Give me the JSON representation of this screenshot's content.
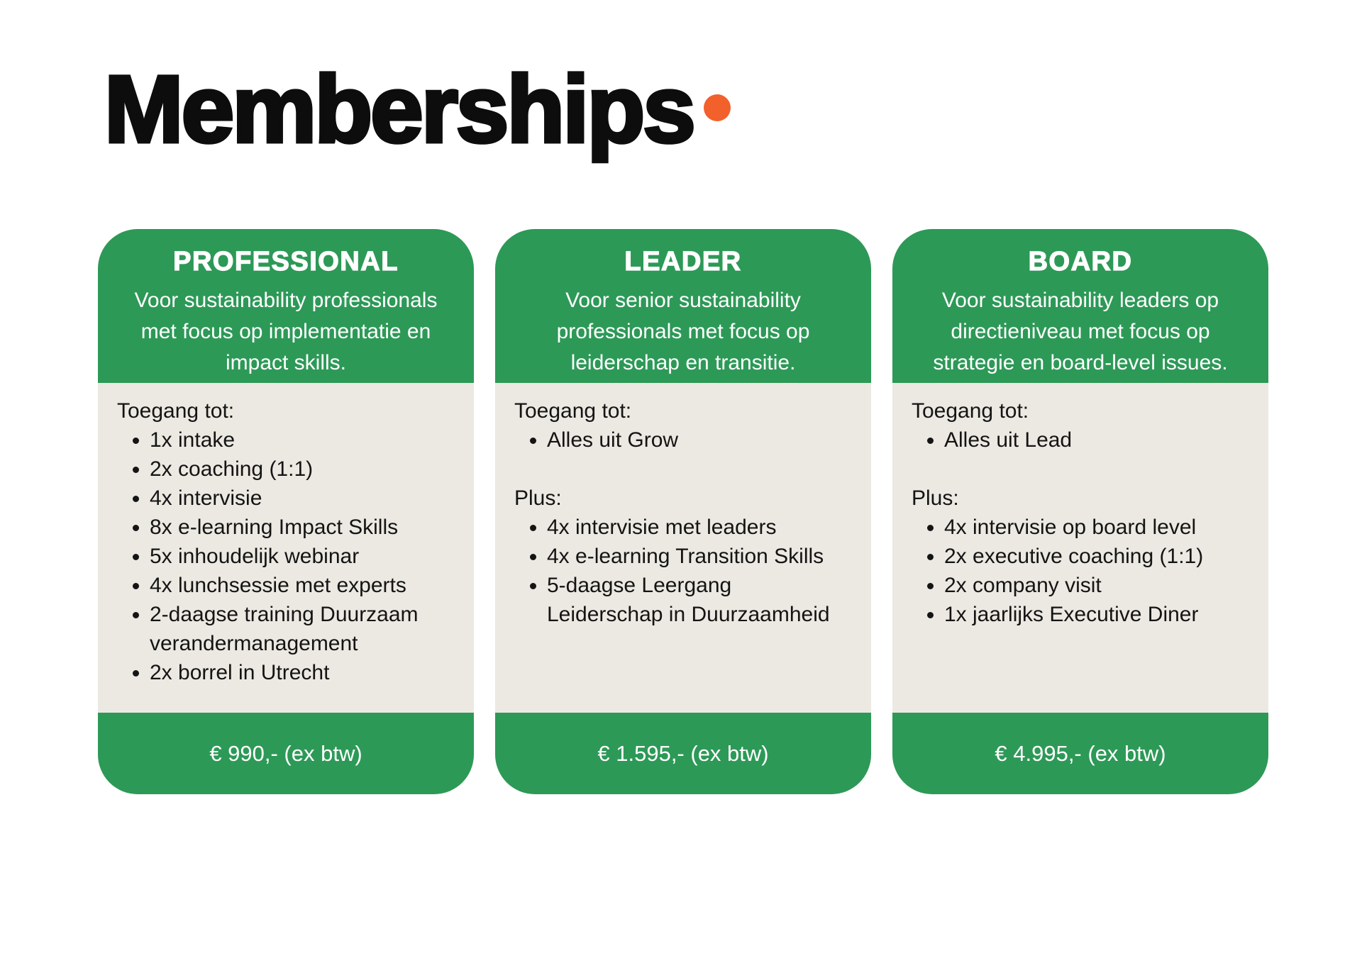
{
  "page": {
    "title": "Memberships",
    "title_period": "."
  },
  "theme": {
    "green": "#2D9957",
    "beige": "#ECE9E2",
    "orange": "#F2602C",
    "text_dark": "#141414",
    "title_black": "#0D0D0D",
    "background": "#FFFFFF"
  },
  "cards": [
    {
      "name": "PROFESSIONAL",
      "description": "Voor sustainability professionals\nmet focus op implementatie en\nimpact skills.",
      "sections": [
        {
          "label": "Toegang tot:",
          "items": [
            "1x intake",
            "2x coaching (1:1)",
            "4x intervisie",
            "8x e-learning Impact Skills",
            "5x inhoudelijk webinar",
            "4x lunchsessie met experts",
            "2-daagse training Duurzaam\nverandermanagement",
            "2x borrel in Utrecht"
          ]
        }
      ],
      "price": "€ 990,- (ex btw)"
    },
    {
      "name": "LEADER",
      "description": "Voor senior sustainability\nprofessionals met focus op\nleiderschap en transitie.",
      "sections": [
        {
          "label": "Toegang tot:",
          "items": [
            "Alles uit Grow"
          ]
        },
        {
          "label": "Plus:",
          "items": [
            "4x intervisie met leaders",
            "4x e-learning Transition Skills",
            "5-daagse Leergang\nLeiderschap in Duurzaamheid"
          ]
        }
      ],
      "price": "€ 1.595,- (ex btw)"
    },
    {
      "name": "BOARD",
      "description": "Voor sustainability leaders op\ndirectieniveau met focus op\nstrategie en board-level issues.",
      "sections": [
        {
          "label": "Toegang tot:",
          "items": [
            "Alles uit Lead"
          ]
        },
        {
          "label": "Plus:",
          "items": [
            "4x intervisie op board level",
            "2x executive coaching (1:1)",
            "2x company visit",
            "1x jaarlijks Executive Diner"
          ]
        }
      ],
      "price": "€ 4.995,- (ex btw)"
    }
  ]
}
